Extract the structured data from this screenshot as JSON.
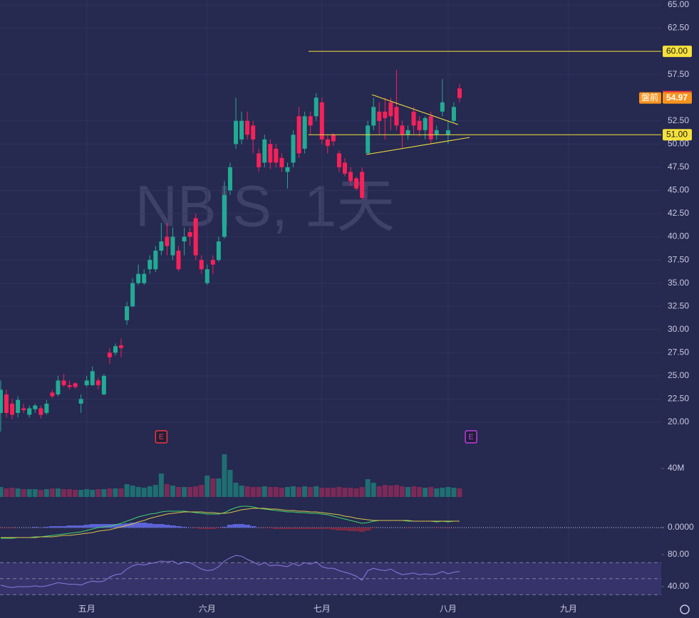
{
  "chart_data": [
    {
      "type": "candlestick",
      "title": "NBIS, 1天",
      "open": [
        21,
        23,
        22,
        21,
        21.5,
        20.8,
        21.4,
        21.5,
        21,
        23.2,
        23,
        24.5,
        24,
        24.2,
        22,
        24,
        24,
        24.5,
        23,
        27.5,
        27.5,
        28.3,
        31,
        32.5,
        35,
        35,
        36.5,
        36.5,
        38.5,
        40,
        38,
        38.5,
        39.5,
        40.5,
        42,
        37.5,
        35,
        37.5,
        37.5,
        40,
        45,
        50,
        50.5,
        52.5,
        52,
        49,
        48,
        50,
        49.5,
        48.5,
        47,
        48,
        53,
        49.5,
        53,
        53,
        54.5,
        50.5,
        51,
        49,
        48,
        47,
        46.3,
        47,
        49,
        52,
        53.5,
        53.5,
        54.5,
        54,
        52,
        51,
        53.5,
        52.5,
        51.5,
        53,
        51,
        53.5,
        51,
        52.5,
        56
      ],
      "high": [
        24.5,
        23.5,
        22.5,
        22.8,
        22,
        21.8,
        22,
        21.8,
        22.4,
        23.5,
        25,
        25.2,
        24.5,
        24.3,
        23,
        25,
        26,
        24.8,
        25.2,
        28,
        28.5,
        29,
        33,
        35.5,
        37,
        36.5,
        38,
        39,
        41.5,
        41.5,
        41,
        39,
        41,
        41,
        42.5,
        38,
        37,
        38,
        40,
        46,
        48,
        55,
        53.5,
        53.5,
        52.5,
        49.5,
        51,
        50.5,
        50,
        49,
        48,
        51.5,
        54,
        53.5,
        53.5,
        55.5,
        55,
        51,
        51.2,
        49.3,
        48.5,
        47.5,
        46.5,
        47.5,
        52.5,
        55,
        54.5,
        55,
        55,
        58,
        52.5,
        52,
        54,
        53,
        53,
        53.5,
        52,
        57,
        52.5,
        54.5,
        56.5
      ],
      "low": [
        19,
        20.5,
        20.3,
        20.5,
        21,
        20.5,
        21,
        20.4,
        20.8,
        22.6,
        22.8,
        23.8,
        23.5,
        23.6,
        21,
        23.8,
        23.9,
        23.5,
        22.9,
        26.3,
        27.2,
        27,
        30.5,
        32.4,
        34.8,
        34.8,
        36,
        36.2,
        38,
        38,
        37.5,
        36.3,
        38,
        39,
        37.5,
        36,
        34.8,
        36,
        37.3,
        39.8,
        44.5,
        49.5,
        50,
        50.5,
        49,
        47,
        47.5,
        47.3,
        47.5,
        47,
        45.2,
        47.5,
        48.5,
        49,
        51,
        52.5,
        50,
        49,
        49.8,
        47,
        46.5,
        45.5,
        45,
        44,
        49,
        51.5,
        51,
        50.5,
        51.5,
        51.5,
        49.5,
        50.5,
        51,
        50.8,
        50.5,
        50,
        50.5,
        53,
        50,
        52.3,
        54.5
      ],
      "close": [
        23.5,
        21,
        20.8,
        22.4,
        21.3,
        21.5,
        21.8,
        20.8,
        22,
        22.8,
        24.5,
        24,
        23.8,
        23.8,
        22.5,
        24.5,
        25.5,
        24,
        25,
        27,
        28.2,
        28,
        32.5,
        35,
        36,
        36,
        37.5,
        38.5,
        39.5,
        39,
        40,
        36.5,
        40,
        40,
        38,
        36.5,
        36.5,
        37,
        39.5,
        44.5,
        47.5,
        52.5,
        52.5,
        51,
        50.5,
        47.5,
        50.5,
        48,
        48,
        47.5,
        47.5,
        51,
        49,
        53,
        52,
        55,
        50.5,
        49.8,
        50.3,
        47.5,
        46.8,
        46,
        45.2,
        44.2,
        52,
        54,
        52.5,
        52.8,
        53,
        52,
        51,
        51.5,
        52,
        51.5,
        52.8,
        50.5,
        51.5,
        54.5,
        51.5,
        54,
        54.97
      ],
      "up_color": "#22ab94",
      "down_color": "#f7215a",
      "xlim": [
        -0.12,
        121.74
      ],
      "xticks": [
        {
          "value": 15,
          "label": "五月"
        },
        {
          "value": 36,
          "label": "六月"
        },
        {
          "value": 56,
          "label": "七月"
        },
        {
          "value": 78,
          "label": "八月"
        },
        {
          "value": 99,
          "label": "九月"
        }
      ],
      "ylim": [
        20,
        65
      ],
      "yticks": [
        {
          "value": 20,
          "label": "20.00"
        },
        {
          "value": 22.5,
          "label": "22.50"
        },
        {
          "value": 25,
          "label": "25.00"
        },
        {
          "value": 27.5,
          "label": "27.50"
        },
        {
          "value": 30,
          "label": "30.00"
        },
        {
          "value": 32.5,
          "label": "32.50"
        },
        {
          "value": 35,
          "label": "35.00"
        },
        {
          "value": 37.5,
          "label": "37.50"
        },
        {
          "value": 40,
          "label": "40.00"
        },
        {
          "value": 42.5,
          "label": "42.50"
        },
        {
          "value": 45,
          "label": "45.00"
        },
        {
          "value": 47.5,
          "label": "47.50"
        },
        {
          "value": 50,
          "label": "50.00"
        },
        {
          "value": 52.5,
          "label": "52.50"
        },
        {
          "value": 57.5,
          "label": "57.50"
        },
        {
          "value": 62.5,
          "label": "62.50"
        },
        {
          "value": 65,
          "label": "65.00"
        }
      ],
      "grid": true,
      "hlines": [
        {
          "value": 60,
          "label": "60.00"
        },
        {
          "value": 51,
          "label": "51.00"
        }
      ],
      "hline_color": "#f5e13c",
      "last_price": {
        "value": 54.97,
        "tag": "盤前"
      },
      "events": [
        {
          "x": 28,
          "label": "E",
          "color": "#f23645"
        },
        {
          "x": 82,
          "label": "E",
          "color": "#c13be0"
        }
      ]
    },
    {
      "type": "bar",
      "values": [
        14,
        12,
        13,
        12,
        11,
        11,
        11,
        10,
        11,
        12,
        12,
        11,
        11,
        10,
        10,
        11,
        10,
        11,
        11,
        12,
        12,
        12,
        18,
        16,
        14,
        13,
        15,
        17,
        33,
        18,
        16,
        14,
        14,
        14,
        15,
        17,
        30,
        26,
        26,
        60,
        38,
        20,
        16,
        15,
        14,
        14,
        15,
        14,
        14,
        13,
        14,
        15,
        14,
        15,
        14,
        15,
        13,
        13,
        13,
        14,
        13,
        13,
        12,
        14,
        25,
        20,
        15,
        17,
        16,
        17,
        15,
        14,
        15,
        14,
        13,
        14,
        12,
        13,
        14,
        13,
        12
      ],
      "up_color": "#1f6e72",
      "down_color": "#7b2a57",
      "ylim": [
        0,
        60
      ],
      "yticks": [
        {
          "value": 40,
          "label": "40M"
        }
      ]
    },
    {
      "type": "line",
      "series": [
        {
          "color": "#3fd46a",
          "values": [
            -1.5,
            -1.5,
            -1.5,
            -1.4,
            -1.4,
            -1.4,
            -1.3,
            -1.3,
            -1.2,
            -1.1,
            -1.0,
            -0.9,
            -0.8,
            -0.7,
            -0.6,
            -0.4,
            -0.2,
            0,
            0.1,
            0.2,
            0.4,
            0.6,
            0.9,
            1.2,
            1.5,
            1.7,
            1.9,
            2.0,
            2.2,
            2.3,
            2.3,
            2.3,
            2.3,
            2.2,
            2.1,
            2.0,
            1.9,
            1.9,
            1.9,
            2.1,
            2.5,
            2.8,
            3.0,
            3.0,
            2.9,
            2.7,
            2.6,
            2.5,
            2.4,
            2.3,
            2.2,
            2.2,
            2.1,
            2.1,
            2.0,
            2.0,
            1.9,
            1.8,
            1.6,
            1.4,
            1.2,
            1.0,
            0.8,
            0.6,
            0.7,
            0.9,
            1.0,
            1.0,
            1.0,
            1.0,
            1.0,
            0.9,
            0.9,
            0.9,
            0.9,
            0.9,
            0.8,
            0.9,
            0.8,
            0.9,
            0.9
          ]
        },
        {
          "color": "#d8c54a",
          "values": [
            -1.4,
            -1.4,
            -1.4,
            -1.4,
            -1.4,
            -1.4,
            -1.4,
            -1.3,
            -1.3,
            -1.3,
            -1.2,
            -1.1,
            -1.1,
            -1.0,
            -0.9,
            -0.8,
            -0.7,
            -0.5,
            -0.4,
            -0.3,
            -0.1,
            0.1,
            0.3,
            0.5,
            0.8,
            1.0,
            1.3,
            1.5,
            1.7,
            1.9,
            2.0,
            2.1,
            2.2,
            2.2,
            2.2,
            2.2,
            2.1,
            2.1,
            2.0,
            2.0,
            2.1,
            2.3,
            2.5,
            2.6,
            2.7,
            2.7,
            2.7,
            2.6,
            2.6,
            2.5,
            2.4,
            2.4,
            2.3,
            2.3,
            2.2,
            2.2,
            2.1,
            2.0,
            1.9,
            1.8,
            1.6,
            1.5,
            1.3,
            1.2,
            1.1,
            1.0,
            1.0,
            1.0,
            1.0,
            1.0,
            1.0,
            1.0,
            0.9,
            0.9,
            0.9,
            0.9,
            0.9,
            0.9,
            0.9,
            0.9,
            0.9
          ]
        }
      ],
      "histogram": [
        -0.1,
        -0.1,
        -0.1,
        0,
        0,
        0,
        0.1,
        0,
        0.1,
        0.2,
        0.2,
        0.2,
        0.3,
        0.3,
        0.3,
        0.4,
        0.5,
        0.5,
        0.5,
        0.5,
        0.5,
        0.5,
        0.6,
        0.7,
        0.7,
        0.7,
        0.6,
        0.5,
        0.5,
        0.4,
        0.3,
        0.2,
        0.1,
        0,
        -0.1,
        -0.2,
        -0.2,
        -0.2,
        -0.1,
        0.1,
        0.4,
        0.5,
        0.5,
        0.4,
        0.2,
        0,
        -0.1,
        -0.1,
        -0.2,
        -0.2,
        -0.2,
        -0.2,
        -0.2,
        -0.2,
        -0.2,
        -0.2,
        -0.2,
        -0.2,
        -0.3,
        -0.4,
        -0.4,
        -0.5,
        -0.5,
        -0.6,
        -0.4,
        -0.1,
        0,
        0,
        0,
        0,
        0,
        -0.1,
        0,
        0,
        0,
        0,
        -0.1,
        0,
        -0.1,
        0,
        0
      ],
      "up_color": "#5b63d6",
      "down_color": "#7a2a45",
      "ylim": [
        -2,
        4
      ],
      "yticks": [
        {
          "value": 0,
          "label": "0.0000"
        }
      ]
    },
    {
      "type": "line",
      "series": [
        {
          "color": "#8b7be0",
          "values": [
            42,
            40,
            39,
            40,
            40,
            40,
            41,
            40,
            41,
            43,
            45,
            44,
            43,
            43,
            42,
            45,
            47,
            46,
            47,
            52,
            55,
            56,
            62,
            66,
            68,
            67,
            69,
            70,
            72,
            71,
            72,
            68,
            71,
            70,
            66,
            62,
            60,
            61,
            65,
            72,
            76,
            79,
            78,
            74,
            71,
            67,
            70,
            66,
            67,
            66,
            65,
            69,
            66,
            70,
            68,
            71,
            65,
            63,
            63,
            60,
            58,
            56,
            53,
            48,
            60,
            63,
            61,
            60,
            62,
            58,
            55,
            56,
            57,
            55,
            56,
            55,
            56,
            59,
            56,
            58,
            59
          ]
        }
      ],
      "band": [
        30,
        70
      ],
      "midline": 50,
      "ylim": [
        25,
        90
      ],
      "yticks": [
        {
          "value": 80,
          "label": "80.00"
        },
        {
          "value": 40,
          "label": "40.00"
        }
      ]
    }
  ]
}
